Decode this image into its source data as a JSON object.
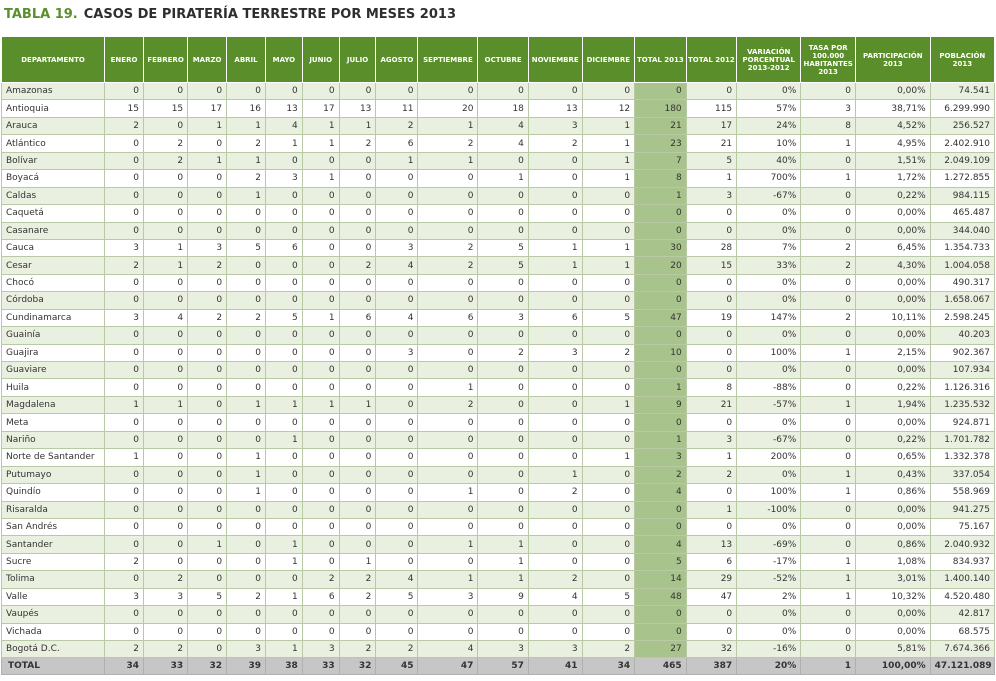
{
  "title": {
    "number": "TABLA 19.",
    "text": "CASOS DE PIRATERÍA TERRESTRE POR MESES 2013"
  },
  "columns": [
    "DEPARTAMENTO",
    "ENERO",
    "FEBRERO",
    "MARZO",
    "ABRIL",
    "MAYO",
    "JUNIO",
    "JULIO",
    "AGOSTO",
    "SEPTIEMBRE",
    "OCTUBRE",
    "NOVIEMBRE",
    "DICIEMBRE",
    "TOTAL 2013",
    "TOTAL 2012",
    "VARIACIÓN PORCENTUAL 2013-2012",
    "TASA POR 100.000 HABITANTES 2013",
    "PARTICIPACIÓN 2013",
    "POBLACIÓN 2013"
  ],
  "rows": [
    [
      "Amazonas",
      "0",
      "0",
      "0",
      "0",
      "0",
      "0",
      "0",
      "0",
      "0",
      "0",
      "0",
      "0",
      "0",
      "0",
      "0%",
      "0",
      "0,00%",
      "74.541"
    ],
    [
      "Antioquia",
      "15",
      "15",
      "17",
      "16",
      "13",
      "17",
      "13",
      "11",
      "20",
      "18",
      "13",
      "12",
      "180",
      "115",
      "57%",
      "3",
      "38,71%",
      "6.299.990"
    ],
    [
      "Arauca",
      "2",
      "0",
      "1",
      "1",
      "4",
      "1",
      "1",
      "2",
      "1",
      "4",
      "3",
      "1",
      "21",
      "17",
      "24%",
      "8",
      "4,52%",
      "256.527"
    ],
    [
      "Atlántico",
      "0",
      "2",
      "0",
      "2",
      "1",
      "1",
      "2",
      "6",
      "2",
      "4",
      "2",
      "1",
      "23",
      "21",
      "10%",
      "1",
      "4,95%",
      "2.402.910"
    ],
    [
      "Bolívar",
      "0",
      "2",
      "1",
      "1",
      "0",
      "0",
      "0",
      "1",
      "1",
      "0",
      "0",
      "1",
      "7",
      "5",
      "40%",
      "0",
      "1,51%",
      "2.049.109"
    ],
    [
      "Boyacá",
      "0",
      "0",
      "0",
      "2",
      "3",
      "1",
      "0",
      "0",
      "0",
      "1",
      "0",
      "1",
      "8",
      "1",
      "700%",
      "1",
      "1,72%",
      "1.272.855"
    ],
    [
      "Caldas",
      "0",
      "0",
      "0",
      "1",
      "0",
      "0",
      "0",
      "0",
      "0",
      "0",
      "0",
      "0",
      "1",
      "3",
      "-67%",
      "0",
      "0,22%",
      "984.115"
    ],
    [
      "Caquetá",
      "0",
      "0",
      "0",
      "0",
      "0",
      "0",
      "0",
      "0",
      "0",
      "0",
      "0",
      "0",
      "0",
      "0",
      "0%",
      "0",
      "0,00%",
      "465.487"
    ],
    [
      "Casanare",
      "0",
      "0",
      "0",
      "0",
      "0",
      "0",
      "0",
      "0",
      "0",
      "0",
      "0",
      "0",
      "0",
      "0",
      "0%",
      "0",
      "0,00%",
      "344.040"
    ],
    [
      "Cauca",
      "3",
      "1",
      "3",
      "5",
      "6",
      "0",
      "0",
      "3",
      "2",
      "5",
      "1",
      "1",
      "30",
      "28",
      "7%",
      "2",
      "6,45%",
      "1.354.733"
    ],
    [
      "Cesar",
      "2",
      "1",
      "2",
      "0",
      "0",
      "0",
      "2",
      "4",
      "2",
      "5",
      "1",
      "1",
      "20",
      "15",
      "33%",
      "2",
      "4,30%",
      "1.004.058"
    ],
    [
      "Chocó",
      "0",
      "0",
      "0",
      "0",
      "0",
      "0",
      "0",
      "0",
      "0",
      "0",
      "0",
      "0",
      "0",
      "0",
      "0%",
      "0",
      "0,00%",
      "490.317"
    ],
    [
      "Córdoba",
      "0",
      "0",
      "0",
      "0",
      "0",
      "0",
      "0",
      "0",
      "0",
      "0",
      "0",
      "0",
      "0",
      "0",
      "0%",
      "0",
      "0,00%",
      "1.658.067"
    ],
    [
      "Cundinamarca",
      "3",
      "4",
      "2",
      "2",
      "5",
      "1",
      "6",
      "4",
      "6",
      "3",
      "6",
      "5",
      "47",
      "19",
      "147%",
      "2",
      "10,11%",
      "2.598.245"
    ],
    [
      "Guainía",
      "0",
      "0",
      "0",
      "0",
      "0",
      "0",
      "0",
      "0",
      "0",
      "0",
      "0",
      "0",
      "0",
      "0",
      "0%",
      "0",
      "0,00%",
      "40.203"
    ],
    [
      "Guajira",
      "0",
      "0",
      "0",
      "0",
      "0",
      "0",
      "0",
      "3",
      "0",
      "2",
      "3",
      "2",
      "10",
      "0",
      "100%",
      "1",
      "2,15%",
      "902.367"
    ],
    [
      "Guaviare",
      "0",
      "0",
      "0",
      "0",
      "0",
      "0",
      "0",
      "0",
      "0",
      "0",
      "0",
      "0",
      "0",
      "0",
      "0%",
      "0",
      "0,00%",
      "107.934"
    ],
    [
      "Huila",
      "0",
      "0",
      "0",
      "0",
      "0",
      "0",
      "0",
      "0",
      "1",
      "0",
      "0",
      "0",
      "1",
      "8",
      "-88%",
      "0",
      "0,22%",
      "1.126.316"
    ],
    [
      "Magdalena",
      "1",
      "1",
      "0",
      "1",
      "1",
      "1",
      "1",
      "0",
      "2",
      "0",
      "0",
      "1",
      "9",
      "21",
      "-57%",
      "1",
      "1,94%",
      "1.235.532"
    ],
    [
      "Meta",
      "0",
      "0",
      "0",
      "0",
      "0",
      "0",
      "0",
      "0",
      "0",
      "0",
      "0",
      "0",
      "0",
      "0",
      "0%",
      "0",
      "0,00%",
      "924.871"
    ],
    [
      "Nariño",
      "0",
      "0",
      "0",
      "0",
      "1",
      "0",
      "0",
      "0",
      "0",
      "0",
      "0",
      "0",
      "1",
      "3",
      "-67%",
      "0",
      "0,22%",
      "1.701.782"
    ],
    [
      "Norte de Santander",
      "1",
      "0",
      "0",
      "1",
      "0",
      "0",
      "0",
      "0",
      "0",
      "0",
      "0",
      "1",
      "3",
      "1",
      "200%",
      "0",
      "0,65%",
      "1.332.378"
    ],
    [
      "Putumayo",
      "0",
      "0",
      "0",
      "1",
      "0",
      "0",
      "0",
      "0",
      "0",
      "0",
      "1",
      "0",
      "2",
      "2",
      "0%",
      "1",
      "0,43%",
      "337.054"
    ],
    [
      "Quindío",
      "0",
      "0",
      "0",
      "1",
      "0",
      "0",
      "0",
      "0",
      "1",
      "0",
      "2",
      "0",
      "4",
      "0",
      "100%",
      "1",
      "0,86%",
      "558.969"
    ],
    [
      "Risaralda",
      "0",
      "0",
      "0",
      "0",
      "0",
      "0",
      "0",
      "0",
      "0",
      "0",
      "0",
      "0",
      "0",
      "1",
      "-100%",
      "0",
      "0,00%",
      "941.275"
    ],
    [
      "San Andrés",
      "0",
      "0",
      "0",
      "0",
      "0",
      "0",
      "0",
      "0",
      "0",
      "0",
      "0",
      "0",
      "0",
      "0",
      "0%",
      "0",
      "0,00%",
      "75.167"
    ],
    [
      "Santander",
      "0",
      "0",
      "1",
      "0",
      "1",
      "0",
      "0",
      "0",
      "1",
      "1",
      "0",
      "0",
      "4",
      "13",
      "-69%",
      "0",
      "0,86%",
      "2.040.932"
    ],
    [
      "Sucre",
      "2",
      "0",
      "0",
      "0",
      "1",
      "0",
      "1",
      "0",
      "0",
      "1",
      "0",
      "0",
      "5",
      "6",
      "-17%",
      "1",
      "1,08%",
      "834.937"
    ],
    [
      "Tolima",
      "0",
      "2",
      "0",
      "0",
      "0",
      "2",
      "2",
      "4",
      "1",
      "1",
      "2",
      "0",
      "14",
      "29",
      "-52%",
      "1",
      "3,01%",
      "1.400.140"
    ],
    [
      "Valle",
      "3",
      "3",
      "5",
      "2",
      "1",
      "6",
      "2",
      "5",
      "3",
      "9",
      "4",
      "5",
      "48",
      "47",
      "2%",
      "1",
      "10,32%",
      "4.520.480"
    ],
    [
      "Vaupés",
      "0",
      "0",
      "0",
      "0",
      "0",
      "0",
      "0",
      "0",
      "0",
      "0",
      "0",
      "0",
      "0",
      "0",
      "0%",
      "0",
      "0,00%",
      "42.817"
    ],
    [
      "Vichada",
      "0",
      "0",
      "0",
      "0",
      "0",
      "0",
      "0",
      "0",
      "0",
      "0",
      "0",
      "0",
      "0",
      "0",
      "0%",
      "0",
      "0,00%",
      "68.575"
    ],
    [
      "Bogotá D.C.",
      "2",
      "2",
      "0",
      "3",
      "1",
      "3",
      "2",
      "2",
      "4",
      "3",
      "3",
      "2",
      "27",
      "32",
      "-16%",
      "0",
      "5,81%",
      "7.674.366"
    ]
  ],
  "total": [
    "TOTAL",
    "34",
    "33",
    "32",
    "39",
    "38",
    "33",
    "32",
    "45",
    "47",
    "57",
    "41",
    "34",
    "465",
    "387",
    "20%",
    "1",
    "100,00%",
    "47.121.089"
  ],
  "colors": {
    "header": "#5a8e2b",
    "row_stripe": "#eaf0e0",
    "total2013_cell": "#a8c38b",
    "footer": "#c6c6c6",
    "title_number": "#5b8e2e"
  }
}
